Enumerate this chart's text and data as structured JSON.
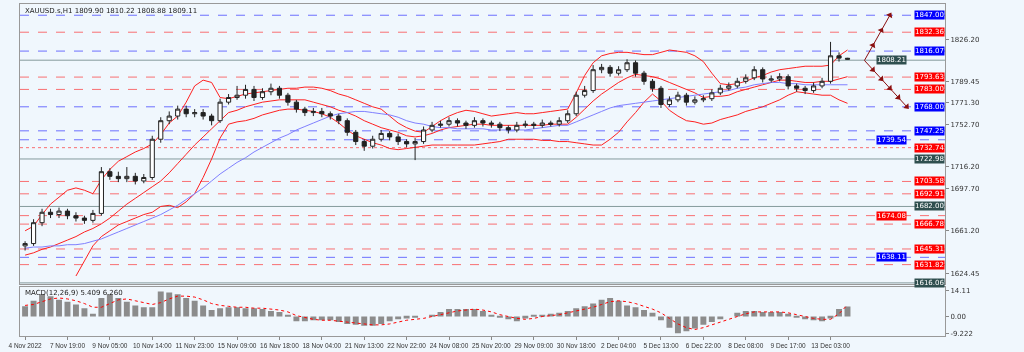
{
  "chart_data": [
    {
      "type": "candlestick",
      "title": "XAUUSD.s,H1 1809.90 1810.22 1808.88 1809.11",
      "color": "#222222",
      "categories": [
        null,
        null,
        null,
        null,
        null,
        null,
        null,
        null,
        null,
        null,
        null,
        null,
        null,
        null,
        null,
        null,
        null,
        null,
        null,
        null,
        null,
        null,
        null,
        null,
        null,
        null,
        null,
        null,
        null,
        null,
        null,
        null,
        null,
        null,
        null,
        null,
        null,
        null,
        null,
        null,
        null,
        null,
        null,
        null,
        null,
        null,
        null,
        null,
        null,
        null,
        null,
        null,
        null,
        null,
        null,
        null,
        null,
        null,
        null,
        null,
        null,
        null,
        null,
        null,
        null,
        null,
        null,
        null,
        null,
        null,
        null,
        null,
        null,
        null,
        null,
        null,
        null,
        null,
        null,
        null,
        null,
        null,
        null,
        null,
        null,
        null,
        null,
        null,
        null,
        null,
        null,
        null,
        null,
        null,
        null,
        null,
        null,
        null,
        null,
        null,
        null,
        null,
        null,
        null,
        null
      ],
      "ohlc": [
        [
          1648,
          1652,
          1644,
          1650
        ],
        [
          1650,
          1671,
          1648,
          1668
        ],
        [
          1668,
          1680,
          1665,
          1677
        ],
        [
          1677,
          1680,
          1672,
          1675
        ],
        [
          1675,
          1681,
          1672,
          1678
        ],
        [
          1678,
          1680,
          1671,
          1674
        ],
        [
          1674,
          1677,
          1669,
          1672
        ],
        [
          1672,
          1674,
          1667,
          1670
        ],
        [
          1670,
          1679,
          1668,
          1676
        ],
        [
          1676,
          1716,
          1674,
          1712
        ],
        [
          1712,
          1715,
          1705,
          1708
        ],
        [
          1708,
          1712,
          1703,
          1706
        ],
        [
          1706,
          1716,
          1703,
          1708
        ],
        [
          1708,
          1711,
          1701,
          1704
        ],
        [
          1704,
          1710,
          1702,
          1707
        ],
        [
          1707,
          1743,
          1705,
          1740
        ],
        [
          1740,
          1759,
          1737,
          1756
        ],
        [
          1756,
          1764,
          1753,
          1760
        ],
        [
          1760,
          1769,
          1757,
          1766
        ],
        [
          1766,
          1769,
          1759,
          1762
        ],
        [
          1762,
          1766,
          1759,
          1763
        ],
        [
          1763,
          1766,
          1757,
          1760
        ],
        [
          1760,
          1762,
          1752,
          1756
        ],
        [
          1756,
          1775,
          1754,
          1772
        ],
        [
          1772,
          1779,
          1770,
          1776
        ],
        [
          1776,
          1786,
          1774,
          1778
        ],
        [
          1778,
          1787,
          1775,
          1783
        ],
        [
          1783,
          1786,
          1773,
          1776
        ],
        [
          1776,
          1784,
          1774,
          1781
        ],
        [
          1781,
          1788,
          1778,
          1784
        ],
        [
          1784,
          1786,
          1775,
          1778
        ],
        [
          1778,
          1780,
          1769,
          1772
        ],
        [
          1772,
          1774,
          1763,
          1766
        ],
        [
          1766,
          1768,
          1760,
          1763
        ],
        [
          1763,
          1767,
          1760,
          1764
        ],
        [
          1764,
          1767,
          1759,
          1762
        ],
        [
          1762,
          1764,
          1757,
          1760
        ],
        [
          1760,
          1762,
          1753,
          1756
        ],
        [
          1756,
          1758,
          1743,
          1746
        ],
        [
          1746,
          1748,
          1735,
          1738
        ],
        [
          1738,
          1740,
          1730,
          1734
        ],
        [
          1734,
          1743,
          1732,
          1740
        ],
        [
          1740,
          1748,
          1738,
          1745
        ],
        [
          1745,
          1747,
          1739,
          1742
        ],
        [
          1742,
          1745,
          1735,
          1738
        ],
        [
          1738,
          1740,
          1733,
          1736
        ],
        [
          1736,
          1741,
          1722,
          1738
        ],
        [
          1738,
          1751,
          1736,
          1748
        ],
        [
          1748,
          1755,
          1746,
          1752
        ],
        [
          1752,
          1756,
          1750,
          1753
        ],
        [
          1753,
          1759,
          1751,
          1756
        ],
        [
          1756,
          1758,
          1751,
          1754
        ],
        [
          1754,
          1756,
          1749,
          1752
        ],
        [
          1752,
          1759,
          1750,
          1756
        ],
        [
          1756,
          1758,
          1751,
          1754
        ],
        [
          1754,
          1756,
          1750,
          1753
        ],
        [
          1753,
          1755,
          1747,
          1750
        ],
        [
          1750,
          1752,
          1745,
          1748
        ],
        [
          1748,
          1755,
          1746,
          1752
        ],
        [
          1752,
          1756,
          1750,
          1753
        ],
        [
          1753,
          1755,
          1749,
          1752
        ],
        [
          1752,
          1757,
          1750,
          1754
        ],
        [
          1754,
          1756,
          1751,
          1753
        ],
        [
          1753,
          1759,
          1751,
          1756
        ],
        [
          1756,
          1765,
          1754,
          1762
        ],
        [
          1762,
          1781,
          1760,
          1778
        ],
        [
          1778,
          1786,
          1776,
          1782
        ],
        [
          1782,
          1804,
          1780,
          1800
        ],
        [
          1800,
          1805,
          1797,
          1802
        ],
        [
          1802,
          1804,
          1794,
          1797
        ],
        [
          1797,
          1803,
          1795,
          1800
        ],
        [
          1800,
          1809,
          1798,
          1806
        ],
        [
          1806,
          1808,
          1794,
          1797
        ],
        [
          1797,
          1799,
          1787,
          1790
        ],
        [
          1790,
          1792,
          1781,
          1784
        ],
        [
          1784,
          1786,
          1767,
          1770
        ],
        [
          1770,
          1777,
          1768,
          1774
        ],
        [
          1774,
          1781,
          1772,
          1778
        ],
        [
          1778,
          1780,
          1769,
          1772
        ],
        [
          1772,
          1777,
          1770,
          1774
        ],
        [
          1774,
          1778,
          1772,
          1775
        ],
        [
          1775,
          1783,
          1773,
          1780
        ],
        [
          1780,
          1787,
          1778,
          1784
        ],
        [
          1784,
          1789,
          1782,
          1786
        ],
        [
          1786,
          1793,
          1784,
          1790
        ],
        [
          1790,
          1796,
          1788,
          1793
        ],
        [
          1793,
          1803,
          1791,
          1800
        ],
        [
          1800,
          1802,
          1789,
          1792
        ],
        [
          1791,
          1795,
          1789,
          1792
        ],
        [
          1792,
          1797,
          1790,
          1794
        ],
        [
          1794,
          1796,
          1783,
          1786
        ],
        [
          1786,
          1788,
          1781,
          1784
        ],
        [
          1784,
          1786,
          1779,
          1782
        ],
        [
          1782,
          1789,
          1780,
          1786
        ],
        [
          1786,
          1793,
          1784,
          1790
        ],
        [
          1790,
          1824,
          1788,
          1812
        ],
        [
          1812,
          1815,
          1807,
          1810
        ],
        [
          1809.9,
          1810.22,
          1808.88,
          1809.11
        ],
        null,
        null,
        null,
        null,
        null,
        null,
        null
      ],
      "series": [
        {
          "type": "line",
          "color": "#ff2020",
          "values": [
            1661,
            1665,
            1675,
            1684,
            1690,
            1696,
            1698,
            1696,
            1693,
            1705,
            1714,
            1721,
            1725,
            1729,
            1732,
            1736,
            1744,
            1754,
            1760,
            1772,
            1786,
            1791,
            1789,
            1776,
            1775,
            1777,
            1779,
            1780,
            1781,
            1782,
            1783,
            1784,
            1784,
            1785,
            1785,
            1784,
            1782,
            1779,
            1777,
            1774,
            1771,
            1768,
            1766,
            1760,
            1754,
            1750,
            1747,
            1746,
            1751,
            1756,
            1760,
            1763,
            1765,
            1764,
            1762,
            1760,
            1761,
            1762,
            1763,
            1762,
            1762,
            1763,
            1764,
            1765,
            1766,
            1780,
            1795,
            1806,
            1812,
            1814,
            1815,
            1815,
            1814,
            1813,
            1813,
            1815,
            1817,
            1816,
            1815,
            1812,
            1807,
            1797,
            1788,
            1787,
            1788,
            1790,
            1793,
            1795,
            1798,
            1800,
            1801,
            1802,
            1803,
            1803,
            1803,
            1804,
            1812,
            1817,
            null,
            null,
            null,
            null,
            null,
            null,
            null
          ]
        },
        {
          "type": "line",
          "color": "#ff2020",
          "values": [
            1640,
            1642,
            1645,
            1647,
            1650,
            1653,
            1656,
            1660,
            1663,
            1667,
            1672,
            1678,
            1684,
            1689,
            1694,
            1699,
            1704,
            1711,
            1719,
            1727,
            1735,
            1742,
            1749,
            1756,
            1763,
            1765,
            1768,
            1770,
            1772,
            1773,
            1774,
            1774,
            1774,
            1774,
            1772,
            1770,
            1768,
            1765,
            1763,
            1760,
            1756,
            1753,
            1750,
            1748,
            1746,
            1743,
            1742,
            1743,
            1745,
            1748,
            1750,
            1751,
            1752,
            1753,
            1753,
            1752,
            1752,
            1752,
            1752,
            1752,
            1752,
            1752,
            1753,
            1753,
            1753,
            1759,
            1766,
            1773,
            1779,
            1784,
            1789,
            1793,
            1796,
            1795,
            1794,
            1792,
            1789,
            1786,
            1783,
            1780,
            1776,
            1777,
            1777,
            1778,
            1781,
            1783,
            1785,
            1787,
            1789,
            1791,
            1791,
            1790,
            1789,
            1789,
            1790,
            1790,
            1792,
            1794,
            null,
            null,
            null,
            null,
            null,
            null,
            null
          ]
        },
        {
          "type": "line",
          "color": "#ff2020",
          "values": [
            null,
            null,
            null,
            null,
            null,
            null,
            1622,
            1635,
            1648,
            1656,
            1661,
            1666,
            1669,
            1672,
            1675,
            1677,
            1682,
            1683,
            1681,
            1686,
            1693,
            1707,
            1723,
            1741,
            1753,
            1755,
            1756,
            1758,
            1761,
            1763,
            1765,
            1766,
            1766,
            1765,
            1764,
            1762,
            1759,
            1754,
            1748,
            1743,
            1740,
            1737,
            1735,
            1732,
            1731,
            1732,
            1733,
            1734,
            1735,
            1735,
            1735,
            1735,
            1735,
            1735,
            1736,
            1737,
            1738,
            1740,
            1740,
            1740,
            1740,
            1739,
            1739,
            1738,
            1738,
            1737,
            1736,
            1735,
            1735,
            1740,
            1746,
            1755,
            1763,
            1772,
            1779,
            1773,
            1765,
            1760,
            1756,
            1755,
            1753,
            1754,
            1757,
            1759,
            1761,
            1764,
            1766,
            1768,
            1771,
            1774,
            1778,
            1781,
            1780,
            1779,
            1778,
            1778,
            1774,
            1771,
            null,
            null,
            null,
            null,
            null,
            null,
            null
          ]
        },
        {
          "type": "line",
          "color": "#8080ff",
          "values": [
            1646,
            1647,
            1647,
            1648,
            1648,
            1649,
            1649,
            1650,
            1652,
            1654,
            1657,
            1660,
            1663,
            1666,
            1669,
            1672,
            1675,
            1679,
            1683,
            1688,
            1693,
            1698,
            1704,
            1710,
            1715,
            1720,
            1724,
            1729,
            1733,
            1737,
            1741,
            1744,
            1748,
            1751,
            1754,
            1757,
            1760,
            1762,
            1763,
            1764,
            1764,
            1763,
            1762,
            1761,
            1759,
            1756,
            1754,
            1753,
            1751,
            1750,
            1750,
            1749,
            1749,
            1749,
            1749,
            1748,
            1748,
            1748,
            1748,
            1748,
            1749,
            1750,
            1751,
            1752,
            1752,
            1755,
            1758,
            1761,
            1764,
            1767,
            1769,
            1770,
            1771,
            1772,
            1773,
            1774,
            1775,
            1776,
            1777,
            1778,
            1779,
            1780,
            1781,
            1782,
            1784,
            1785,
            1787,
            1788,
            1789,
            1789,
            1788,
            1788,
            1787,
            1787,
            1787,
            1787,
            1787,
            1787,
            null,
            null,
            null,
            null,
            null,
            null,
            null
          ]
        },
        {
          "type": "line",
          "color": "#8b1010",
          "marker": "triangle",
          "values": [
            null,
            null,
            null,
            null,
            null,
            null,
            null,
            null,
            null,
            null,
            null,
            null,
            null,
            null,
            null,
            null,
            null,
            null,
            null,
            null,
            null,
            null,
            null,
            null,
            null,
            null,
            null,
            null,
            null,
            null,
            null,
            null,
            null,
            null,
            null,
            null,
            null,
            null,
            null,
            null,
            null,
            null,
            null,
            null,
            null,
            null,
            null,
            null,
            null,
            null,
            null,
            null,
            null,
            null,
            null,
            null,
            null,
            null,
            null,
            null,
            null,
            null,
            null,
            null,
            null,
            null,
            null,
            null,
            null,
            null,
            null,
            null,
            null,
            null,
            null,
            null,
            null,
            null,
            null,
            null,
            null,
            null,
            null,
            null,
            null,
            null,
            null,
            null,
            null,
            null,
            null,
            null,
            null,
            null,
            null,
            null,
            null,
            null,
            null,
            1808,
            1821,
            1834,
            1847.0,
            null,
            null
          ]
        },
        {
          "type": "line",
          "color": "#8b1010",
          "marker": "triangle",
          "values": [
            null,
            null,
            null,
            null,
            null,
            null,
            null,
            null,
            null,
            null,
            null,
            null,
            null,
            null,
            null,
            null,
            null,
            null,
            null,
            null,
            null,
            null,
            null,
            null,
            null,
            null,
            null,
            null,
            null,
            null,
            null,
            null,
            null,
            null,
            null,
            null,
            null,
            null,
            null,
            null,
            null,
            null,
            null,
            null,
            null,
            null,
            null,
            null,
            null,
            null,
            null,
            null,
            null,
            null,
            null,
            null,
            null,
            null,
            null,
            null,
            null,
            null,
            null,
            null,
            null,
            null,
            null,
            null,
            null,
            null,
            null,
            null,
            null,
            null,
            null,
            null,
            null,
            null,
            null,
            null,
            null,
            null,
            null,
            null,
            null,
            null,
            null,
            null,
            null,
            null,
            null,
            null,
            null,
            null,
            null,
            null,
            null,
            null,
            null,
            1808,
            1800,
            1792,
            1784,
            1776,
            1768.0
          ]
        }
      ],
      "ylim": [
        1615.2,
        1856.7
      ],
      "yticks": [
        {
          "value": 1826.2,
          "label": "1826.20"
        },
        {
          "value": 1789.45,
          "label": "1789.45"
        },
        {
          "value": 1771.3,
          "label": "1771.30"
        },
        {
          "value": 1752.7,
          "label": "1752.70"
        },
        {
          "value": 1716.2,
          "label": "1716.20"
        },
        {
          "value": 1697.7,
          "label": "1697.70"
        },
        {
          "value": 1661.2,
          "label": "1661.20"
        },
        1624.45
      ],
      "ref_lines": [
        {
          "axis": "y",
          "value": 1847.0,
          "label": "1847.00",
          "color": "#0000ff",
          "line_style": "dashed"
        },
        {
          "axis": "y",
          "value": 1832.36,
          "label": "1832.36",
          "color": "#ff0000",
          "line_style": "dashed"
        },
        {
          "axis": "y",
          "value": 1816.07,
          "label": "1816.07",
          "color": "#0000ff",
          "line_style": "dashed"
        },
        {
          "axis": "y",
          "value": 1808.21,
          "label": "1808.21",
          "color": "#2f4f4f",
          "line_style": "solid"
        },
        {
          "axis": "y",
          "value": 1793.63,
          "label": "1793.63",
          "color": "#ff0000",
          "line_style": "dashed"
        },
        {
          "axis": "y",
          "value": 1783.0,
          "label": "1783.00",
          "color": "#ff0000",
          "line_style": "dashed"
        },
        {
          "axis": "y",
          "value": 1768.0,
          "label": "1768.00",
          "color": "#0000ff",
          "line_style": "dashed"
        },
        {
          "axis": "y",
          "value": 1747.25,
          "label": "1747.25",
          "color": "#0000ff",
          "line_style": "dashed"
        },
        {
          "axis": "y",
          "value": 1739.54,
          "label": "1739.54",
          "color": "#0000ff",
          "line_style": "dashed"
        },
        {
          "axis": "y",
          "value": 1732.74,
          "label": "1732.74",
          "color": "#ff0000",
          "line_style": "dotted"
        },
        {
          "axis": "y",
          "value": 1722.98,
          "label": "1722.98",
          "color": "#2f4f4f",
          "line_style": "solid"
        },
        {
          "axis": "y",
          "value": 1703.58,
          "label": "1703.58",
          "color": "#ff0000",
          "line_style": "dashed"
        },
        {
          "axis": "y",
          "value": 1692.91,
          "label": "1692.91",
          "color": "#ff0000",
          "line_style": "dashed"
        },
        {
          "axis": "y",
          "value": 1682.0,
          "label": "1682.00",
          "color": "#2f4f4f",
          "line_style": "solid"
        },
        {
          "axis": "y",
          "value": 1674.08,
          "label": "1674.08",
          "color": "#ff0000",
          "line_style": "dashed"
        },
        {
          "axis": "y",
          "value": 1666.78,
          "label": "1666.78",
          "color": "#ff0000",
          "line_style": "dashed"
        },
        {
          "axis": "y",
          "value": 1645.31,
          "label": "1645.31",
          "color": "#ff0000",
          "line_style": "dashed"
        },
        {
          "axis": "y",
          "value": 1638.11,
          "label": "1638.11",
          "color": "#0000ff",
          "line_style": "dashed"
        },
        {
          "axis": "y",
          "value": 1631.82,
          "label": "1631.82",
          "color": "#ff0000",
          "line_style": "dashed"
        },
        {
          "axis": "y",
          "value": 1616.06,
          "label": "1616.06",
          "color": "#2f4f4f",
          "line_style": "solid"
        }
      ],
      "tick_labels": "y",
      "grid": false
    },
    {
      "type": "bar",
      "title": "MACD(12,26,9) 5.409 6.260",
      "categories": [
        "4 Nov 2022",
        null,
        null,
        null,
        null,
        "7 Nov 19:00",
        null,
        null,
        null,
        null,
        "9 Nov 05:00",
        null,
        null,
        null,
        null,
        "10 Nov 14:00",
        null,
        null,
        null,
        null,
        "11 Nov 23:00",
        null,
        null,
        null,
        null,
        "15 Nov 09:00",
        null,
        null,
        null,
        null,
        "16 Nov 18:00",
        null,
        null,
        null,
        null,
        "18 Nov 04:00",
        null,
        null,
        null,
        null,
        "21 Nov 13:00",
        null,
        null,
        null,
        null,
        "22 Nov 22:00",
        null,
        null,
        null,
        null,
        "24 Nov 08:00",
        null,
        null,
        null,
        null,
        "25 Nov 20:00",
        null,
        null,
        null,
        null,
        "29 Nov 09:00",
        null,
        null,
        null,
        null,
        "30 Nov 18:00",
        null,
        null,
        null,
        null,
        "2 Dec 04:00",
        null,
        null,
        null,
        null,
        "5 Dec 13:00",
        null,
        null,
        null,
        null,
        "6 Dec 22:00",
        null,
        null,
        null,
        null,
        "8 Dec 08:00",
        null,
        null,
        null,
        null,
        "9 Dec 17:00",
        null,
        null,
        null,
        null,
        "13 Dec 03:00",
        null,
        null,
        null,
        null,
        null,
        null,
        null,
        null,
        null
      ],
      "series": [
        {
          "type": "bar",
          "color": "#8c8c8c",
          "values": [
            5.5,
            8.5,
            12,
            11,
            9,
            8,
            6.5,
            4.5,
            1.5,
            10,
            12,
            10,
            8,
            6,
            5,
            5,
            13.5,
            13,
            12,
            10,
            8.5,
            6,
            3.5,
            4.5,
            5,
            5,
            4.5,
            4.5,
            4,
            3,
            2.5,
            0.5,
            -2.5,
            -2.5,
            -2,
            -2,
            -2,
            -3,
            -4,
            -4.5,
            -5,
            -5,
            -4,
            -2.5,
            -1.5,
            -1,
            -0.5,
            0,
            1,
            2.5,
            4,
            4,
            4,
            4,
            3,
            1,
            -0.5,
            -1.5,
            -2.5,
            -1,
            0.5,
            1,
            1.5,
            2,
            3,
            4.5,
            5.5,
            7,
            9,
            10,
            8.5,
            6,
            5,
            3.5,
            2,
            -2,
            -6,
            -9,
            -8,
            -6.5,
            -4.5,
            -3,
            -1.5,
            0,
            2,
            3,
            3,
            2.5,
            2.5,
            2.5,
            1.5,
            -0.5,
            -1.5,
            -2,
            -2.5,
            -1,
            4,
            5.4,
            null,
            null,
            null,
            null,
            null,
            null,
            null
          ]
        },
        {
          "type": "line",
          "color": "#ff0000",
          "line_style": "dotted",
          "values": [
            6,
            6.5,
            8,
            9.5,
            10,
            9.5,
            8.5,
            7,
            5,
            5,
            7,
            9,
            9.5,
            8.5,
            7.5,
            6.5,
            7.5,
            9.5,
            11,
            11,
            10.5,
            9,
            7,
            6,
            5.5,
            5,
            5,
            4.5,
            4.5,
            4,
            3.5,
            2.5,
            0.5,
            -0.5,
            -1.5,
            -2,
            -2,
            -2.5,
            -3,
            -3.5,
            -4,
            -4.5,
            -4.5,
            -4,
            -3,
            -2,
            -1.5,
            -1,
            0,
            1,
            2,
            3,
            3.5,
            4,
            3.5,
            2.5,
            1,
            0,
            -1,
            -1.5,
            -1,
            0,
            0.5,
            1,
            2,
            3,
            4,
            5,
            6.5,
            8,
            8.5,
            8,
            7,
            5.5,
            4,
            2,
            -1,
            -4,
            -6,
            -7,
            -6,
            -4.5,
            -3,
            -1.5,
            0,
            1.5,
            2.5,
            2.5,
            2.5,
            2.5,
            2,
            1,
            0,
            -1,
            -1.5,
            -1.5,
            1.5,
            6.3,
            null,
            null,
            null,
            null,
            null,
            null,
            null
          ]
        }
      ],
      "ylim": [
        -10.5,
        16
      ],
      "yticks": [
        14.11,
        {
          "value": 0,
          "label": "0.00"
        },
        -9.222
      ],
      "grid": false
    }
  ]
}
